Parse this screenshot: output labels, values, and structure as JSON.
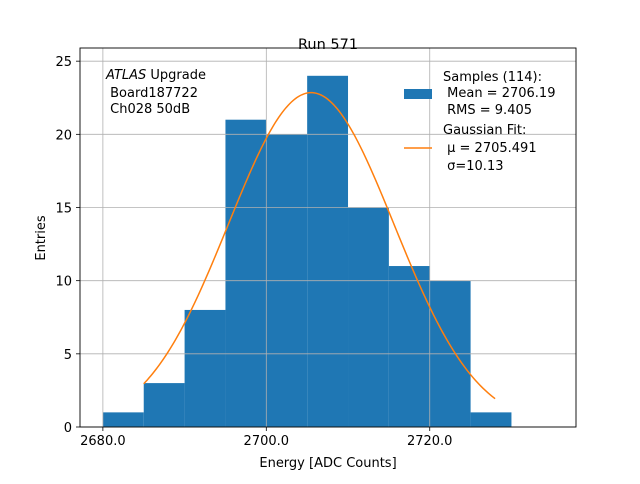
{
  "chart_data": {
    "type": "bar",
    "title": "Run 571",
    "xlabel": "Energy [ADC Counts]",
    "ylabel": "Entries",
    "xlim": [
      2677.2,
      2737.9
    ],
    "ylim": [
      0,
      25.9
    ],
    "grid": true,
    "x_ticks": [
      2680,
      2700,
      2720
    ],
    "x_tick_labels": [
      "2680.0",
      "2700.0",
      "2720.0"
    ],
    "y_ticks": [
      0,
      5,
      10,
      15,
      20,
      25
    ],
    "y_tick_labels": [
      "0",
      "5",
      "10",
      "15",
      "20",
      "25"
    ],
    "bin_edges": [
      2680,
      2685,
      2690,
      2695,
      2700,
      2705,
      2710,
      2715,
      2720,
      2725,
      2730
    ],
    "values": [
      1,
      3,
      8,
      21,
      20,
      24,
      15,
      11,
      10,
      1
    ],
    "bar_color": "#1f77b4",
    "fit": {
      "name": "Gaussian Fit",
      "mu": 2705.491,
      "sigma": 10.13,
      "amplitude": 22.85,
      "x_range": [
        2685,
        2728
      ],
      "color": "#ff7f0e"
    },
    "annotation": {
      "italic": "ATLAS",
      "line1_rest": " Upgrade",
      "line2": " Board187722",
      "line3": " Ch028 50dB"
    },
    "legend": {
      "placement": "top-right",
      "samples_title": "Samples (114):",
      "mean": " Mean = 2706.19",
      "rms": " RMS = 9.405",
      "fit_title": "Gaussian Fit:",
      "mu_label": " μ = 2705.491",
      "sigma_label": " σ=10.13"
    }
  }
}
